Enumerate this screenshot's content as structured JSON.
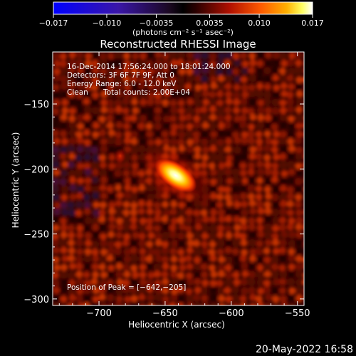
{
  "chart_data": {
    "type": "heatmap",
    "title": "Reconstructed RHESSI Image",
    "xlabel": "Heliocentric X (arcsec)",
    "ylabel": "Heliocentric Y (arcsec)",
    "xlim": [
      -735,
      -545
    ],
    "ylim": [
      -305,
      -110
    ],
    "x_ticks": [
      -700,
      -650,
      -600,
      -550
    ],
    "x_tick_labels": [
      "−700",
      "−650",
      "−600",
      "−550"
    ],
    "y_ticks": [
      -150,
      -200,
      -250,
      -300
    ],
    "y_tick_labels": [
      "−150",
      "−200",
      "−250",
      "−300"
    ],
    "colorbar": {
      "min": -0.017,
      "max": 0.017,
      "ticks": [
        -0.017,
        -0.01,
        -0.0035,
        0.0035,
        0.01,
        0.017
      ],
      "tick_labels": [
        "−0.017",
        "−0.010",
        "−0.0035",
        "0.0035",
        "0.010",
        "0.017"
      ],
      "units_label": "(photons cm⁻² s⁻¹ asec⁻²)",
      "colormap": "blue-black-red-yellow-white"
    },
    "annotations": {
      "time_range": "16-Dec-2014 17:56:24.000 to 18:01:24.000",
      "detectors": "Detectors: 3F 6F 7F 9F, Att 0",
      "energy_range": "Energy Range: 6.0 - 12.0 keV",
      "method": "Clean",
      "total_counts": "Total counts: 2.00E+04",
      "peak": "Position of Peak = [−642,−205]"
    },
    "peak_position": [
      -642,
      -205
    ],
    "source_major_axis_angle_deg": -35,
    "grid": false
  },
  "footer": {
    "date_stamp": "20-May-2022 16:58"
  }
}
